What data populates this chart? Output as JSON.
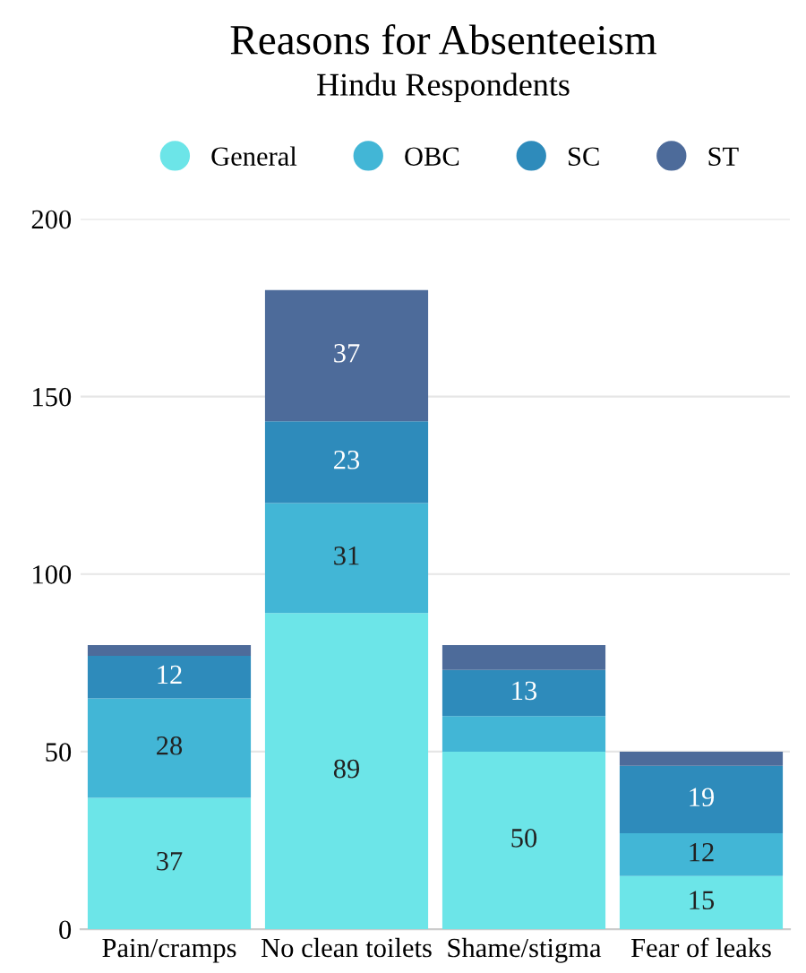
{
  "chart_data": {
    "type": "bar",
    "title": "Reasons for Absenteeism",
    "subtitle": "Hindu Respondents",
    "categories": [
      "Pain/cramps",
      "No clean toilets",
      "Shame/stigma",
      "Fear of leaks"
    ],
    "stacked": true,
    "series": [
      {
        "name": "General",
        "color": "#6ce5e8",
        "values": [
          37,
          89,
          50,
          15
        ],
        "value_labels": [
          "37",
          "89",
          "50",
          "15"
        ]
      },
      {
        "name": "OBC",
        "color": "#42b6d6",
        "values": [
          28,
          31,
          10,
          12
        ],
        "value_labels": [
          "28",
          "31",
          null,
          "12"
        ]
      },
      {
        "name": "SC",
        "color": "#2e8bbb",
        "values": [
          12,
          23,
          13,
          19
        ],
        "value_labels": [
          "12",
          "23",
          "13",
          "19"
        ]
      },
      {
        "name": "ST",
        "color": "#4d6b9a",
        "values": [
          3,
          37,
          7,
          4
        ],
        "value_labels": [
          null,
          "37",
          null,
          null
        ]
      }
    ],
    "ylim": [
      0,
      200
    ],
    "yticks": [
      0,
      50,
      100,
      150,
      200
    ],
    "grid": "y",
    "legend": "top"
  }
}
